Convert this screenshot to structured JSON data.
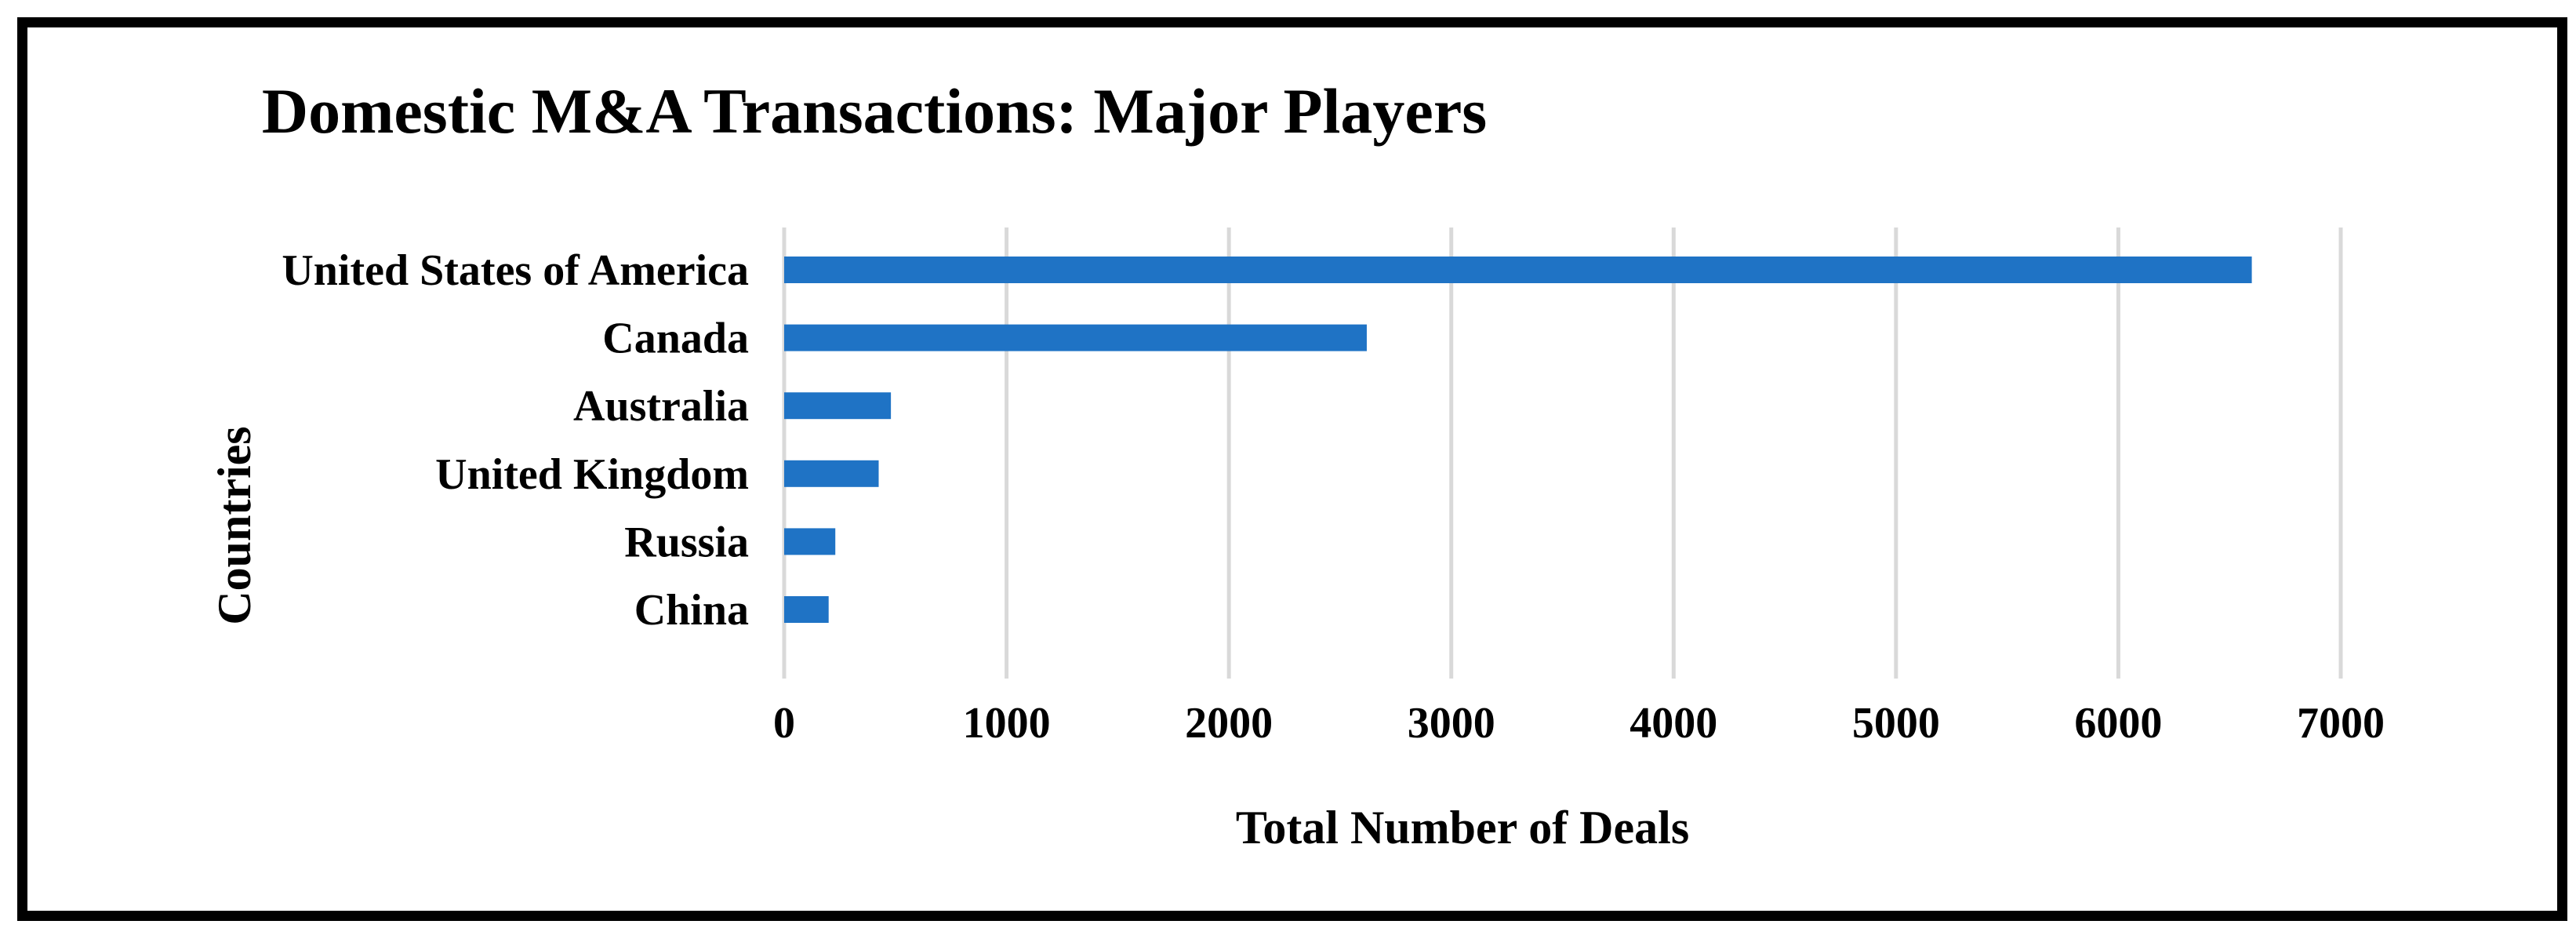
{
  "chart_data": {
    "type": "bar",
    "orientation": "horizontal",
    "title": "Domestic M&A Transactions: Major Players",
    "xlabel": "Total Number of Deals",
    "ylabel": "Countries",
    "categories": [
      "United States of America",
      "Canada",
      "Australia",
      "United Kingdom",
      "Russia",
      "China"
    ],
    "values": [
      6600,
      2620,
      480,
      425,
      230,
      200
    ],
    "xlim": [
      0,
      7000
    ],
    "xticks": [
      0,
      1000,
      2000,
      3000,
      4000,
      5000,
      6000,
      7000
    ],
    "grid": true,
    "legend": "none",
    "bar_color": "#1f73c5"
  }
}
